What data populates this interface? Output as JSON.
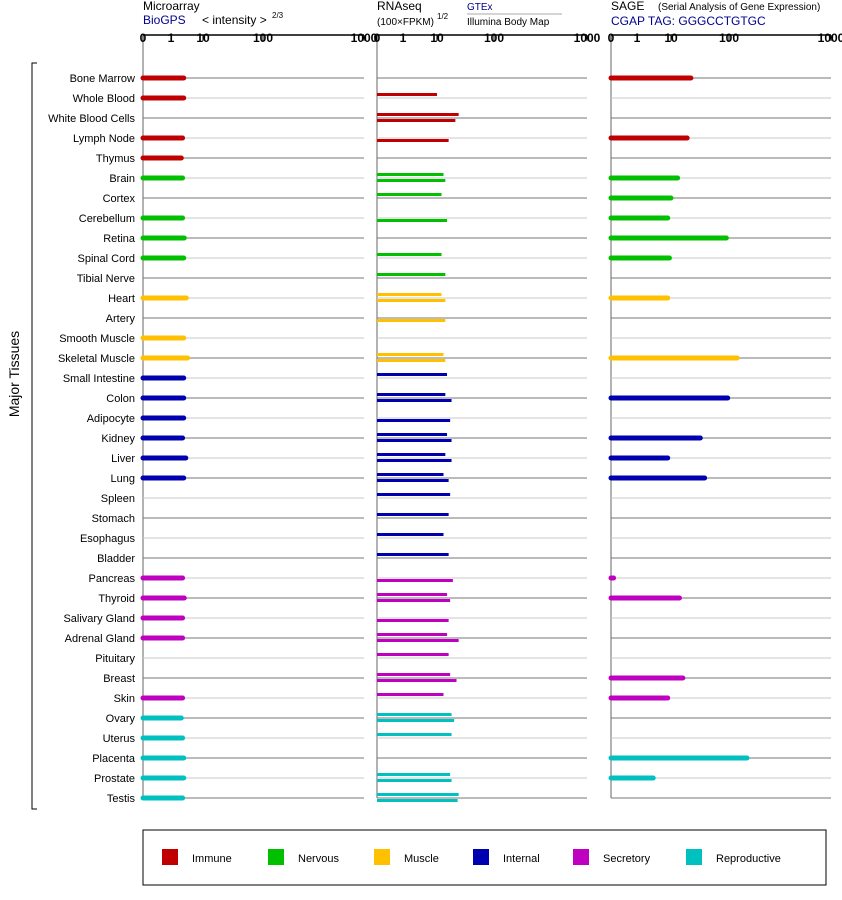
{
  "header": {
    "microarray": {
      "title": "Microarray",
      "source": "BioGPS",
      "scale_label": "< intensity >",
      "scale_exp": "2/3"
    },
    "rnaseq": {
      "title": "RNAseq",
      "scale_label": "(100×FPKM)",
      "scale_exp": "1/2",
      "source_1": "GTEx",
      "source_2": "Illumina Body Map"
    },
    "sage": {
      "title": "SAGE",
      "subtitle": "(Serial Analysis of Gene Expression)",
      "source": "CGAP TAG: GGGCCTGTGC"
    }
  },
  "axis_ticks": [
    "0",
    "1",
    "10",
    "100",
    "1000"
  ],
  "y_axis_label": "Major Tissues",
  "legend": [
    {
      "label": "Immune",
      "color": "#c00000"
    },
    {
      "label": "Nervous",
      "color": "#00c000"
    },
    {
      "label": "Muscle",
      "color": "#ffc000"
    },
    {
      "label": "Internal",
      "color": "#0000b0"
    },
    {
      "label": "Secretory",
      "color": "#c000c0"
    },
    {
      "label": "Reproductive",
      "color": "#00c0c0"
    }
  ],
  "chart_data": {
    "type": "bar",
    "orientation": "horizontal",
    "x_ticks": [
      0,
      1,
      10,
      100,
      1000
    ],
    "categories": [
      "Bone Marrow",
      "Whole Blood",
      "White Blood Cells",
      "Lymph Node",
      "Thymus",
      "Brain",
      "Cortex",
      "Cerebellum",
      "Retina",
      "Spinal Cord",
      "Tibial Nerve",
      "Heart",
      "Artery",
      "Smooth Muscle",
      "Skeletal Muscle",
      "Small Intestine",
      "Colon",
      "Adipocyte",
      "Kidney",
      "Liver",
      "Lung",
      "Spleen",
      "Stomach",
      "Esophagus",
      "Bladder",
      "Pancreas",
      "Thyroid",
      "Salivary Gland",
      "Adrenal Gland",
      "Pituitary",
      "Breast",
      "Skin",
      "Ovary",
      "Uterus",
      "Placenta",
      "Prostate",
      "Testis"
    ],
    "category_system": [
      "Immune",
      "Immune",
      "Immune",
      "Immune",
      "Immune",
      "Nervous",
      "Nervous",
      "Nervous",
      "Nervous",
      "Nervous",
      "Nervous",
      "Muscle",
      "Muscle",
      "Muscle",
      "Muscle",
      "Internal",
      "Internal",
      "Internal",
      "Internal",
      "Internal",
      "Internal",
      "Internal",
      "Internal",
      "Internal",
      "Internal",
      "Secretory",
      "Secretory",
      "Secretory",
      "Secretory",
      "Secretory",
      "Secretory",
      "Secretory",
      "Reproductive",
      "Reproductive",
      "Reproductive",
      "Reproductive",
      "Reproductive"
    ],
    "series": [
      {
        "name": "Microarray",
        "values": [
          2.5,
          2.5,
          null,
          2.3,
          2.1,
          2.3,
          null,
          2.3,
          2.6,
          2.5,
          null,
          3.0,
          null,
          2.5,
          3.3,
          2.5,
          2.5,
          2.5,
          2.3,
          2.9,
          2.5,
          null,
          null,
          null,
          null,
          2.3,
          2.6,
          2.3,
          2.3,
          null,
          null,
          2.3,
          2.1,
          2.3,
          2.5,
          2.5,
          2.3
        ]
      },
      {
        "name": "RNAseq GTEx",
        "values": [
          null,
          10,
          24,
          null,
          null,
          13,
          12,
          null,
          null,
          12,
          14,
          12,
          null,
          null,
          13,
          15,
          14,
          null,
          15,
          14,
          13,
          17,
          16,
          13,
          16,
          null,
          15,
          null,
          15,
          16,
          17,
          13,
          18,
          18,
          null,
          17,
          24
        ]
      },
      {
        "name": "RNAseq Illumina Body Map",
        "values": [
          null,
          null,
          21,
          16,
          null,
          14,
          null,
          15,
          null,
          null,
          null,
          14,
          14,
          null,
          14,
          null,
          18,
          17,
          18,
          18,
          16,
          null,
          null,
          null,
          null,
          19,
          17,
          16,
          24,
          null,
          22,
          null,
          20,
          null,
          null,
          18,
          23
        ]
      },
      {
        "name": "SAGE",
        "values": [
          22,
          null,
          null,
          19,
          null,
          13,
          10,
          8,
          90,
          9,
          null,
          8,
          null,
          null,
          120,
          null,
          95,
          null,
          32,
          8,
          38,
          null,
          null,
          null,
          null,
          0.1,
          14,
          null,
          null,
          null,
          16,
          8,
          null,
          null,
          150,
          3,
          null
        ]
      }
    ]
  }
}
